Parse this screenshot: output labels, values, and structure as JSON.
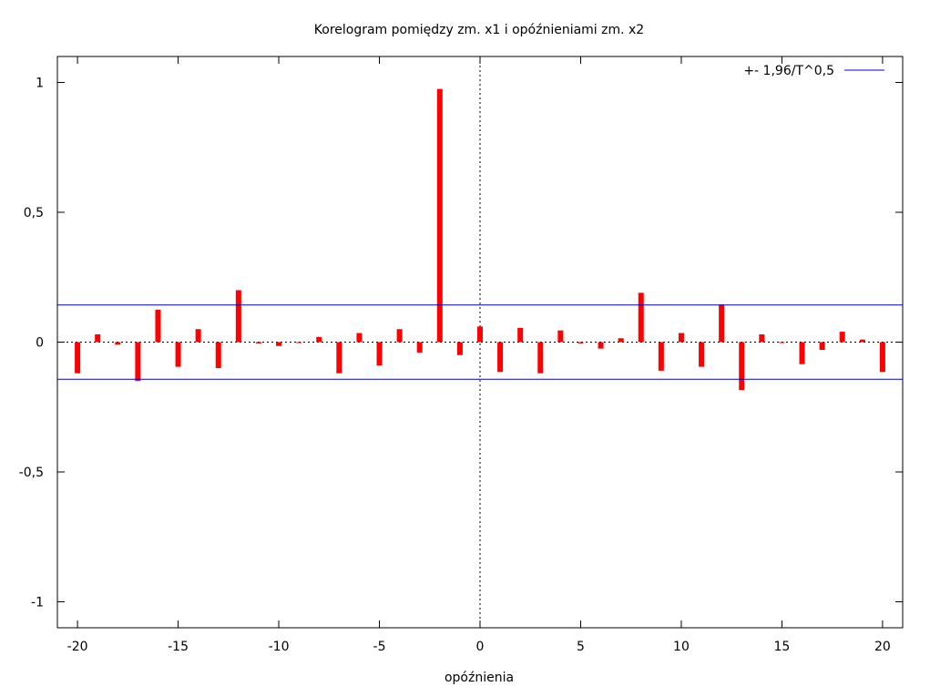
{
  "chart_data": {
    "type": "bar",
    "title": "Korelogram pomiędzy zm. x1 i opóźnieniami zm. x2",
    "xlabel": "opóźnienia",
    "ylabel": "",
    "xlim": [
      -21,
      21
    ],
    "ylim": [
      -1.1,
      1.1
    ],
    "xticks": [
      -20,
      -15,
      -10,
      -5,
      0,
      5,
      10,
      15,
      20
    ],
    "xtick_labels": [
      "-20",
      "-15",
      "-10",
      "-5",
      "0",
      "5",
      "10",
      "15",
      "20"
    ],
    "yticks": [
      1,
      0.5,
      0,
      -0.5,
      -1
    ],
    "ytick_labels": [
      "1",
      "0,5",
      "0",
      "-0,5",
      "-1"
    ],
    "grid": false,
    "legend_position": "top-right",
    "x": [
      -20,
      -19,
      -18,
      -17,
      -16,
      -15,
      -14,
      -13,
      -12,
      -11,
      -10,
      -9,
      -8,
      -7,
      -6,
      -5,
      -4,
      -3,
      -2,
      -1,
      0,
      1,
      2,
      3,
      4,
      5,
      6,
      7,
      8,
      9,
      10,
      11,
      12,
      13,
      14,
      15,
      16,
      17,
      18,
      19,
      20
    ],
    "series": [
      {
        "values": [
          -0.12,
          0.03,
          -0.01,
          -0.15,
          0.125,
          -0.095,
          0.05,
          -0.1,
          0.2,
          -0.005,
          -0.015,
          0.0,
          0.02,
          -0.12,
          0.035,
          -0.09,
          0.05,
          -0.04,
          0.975,
          -0.05,
          0.06,
          -0.115,
          0.055,
          -0.12,
          0.045,
          -0.005,
          -0.025,
          0.015,
          0.19,
          -0.11,
          0.035,
          -0.095,
          0.145,
          -0.185,
          0.03,
          0.0,
          -0.085,
          -0.03,
          0.04,
          0.01,
          -0.115
        ],
        "color": "#ff0000"
      }
    ],
    "reference_lines": {
      "legend_label": "+- 1,96/T^0,5",
      "value": 0.143,
      "color": "#0000cc"
    },
    "zero_line": {
      "color": "#000000",
      "style": "dotted"
    }
  }
}
